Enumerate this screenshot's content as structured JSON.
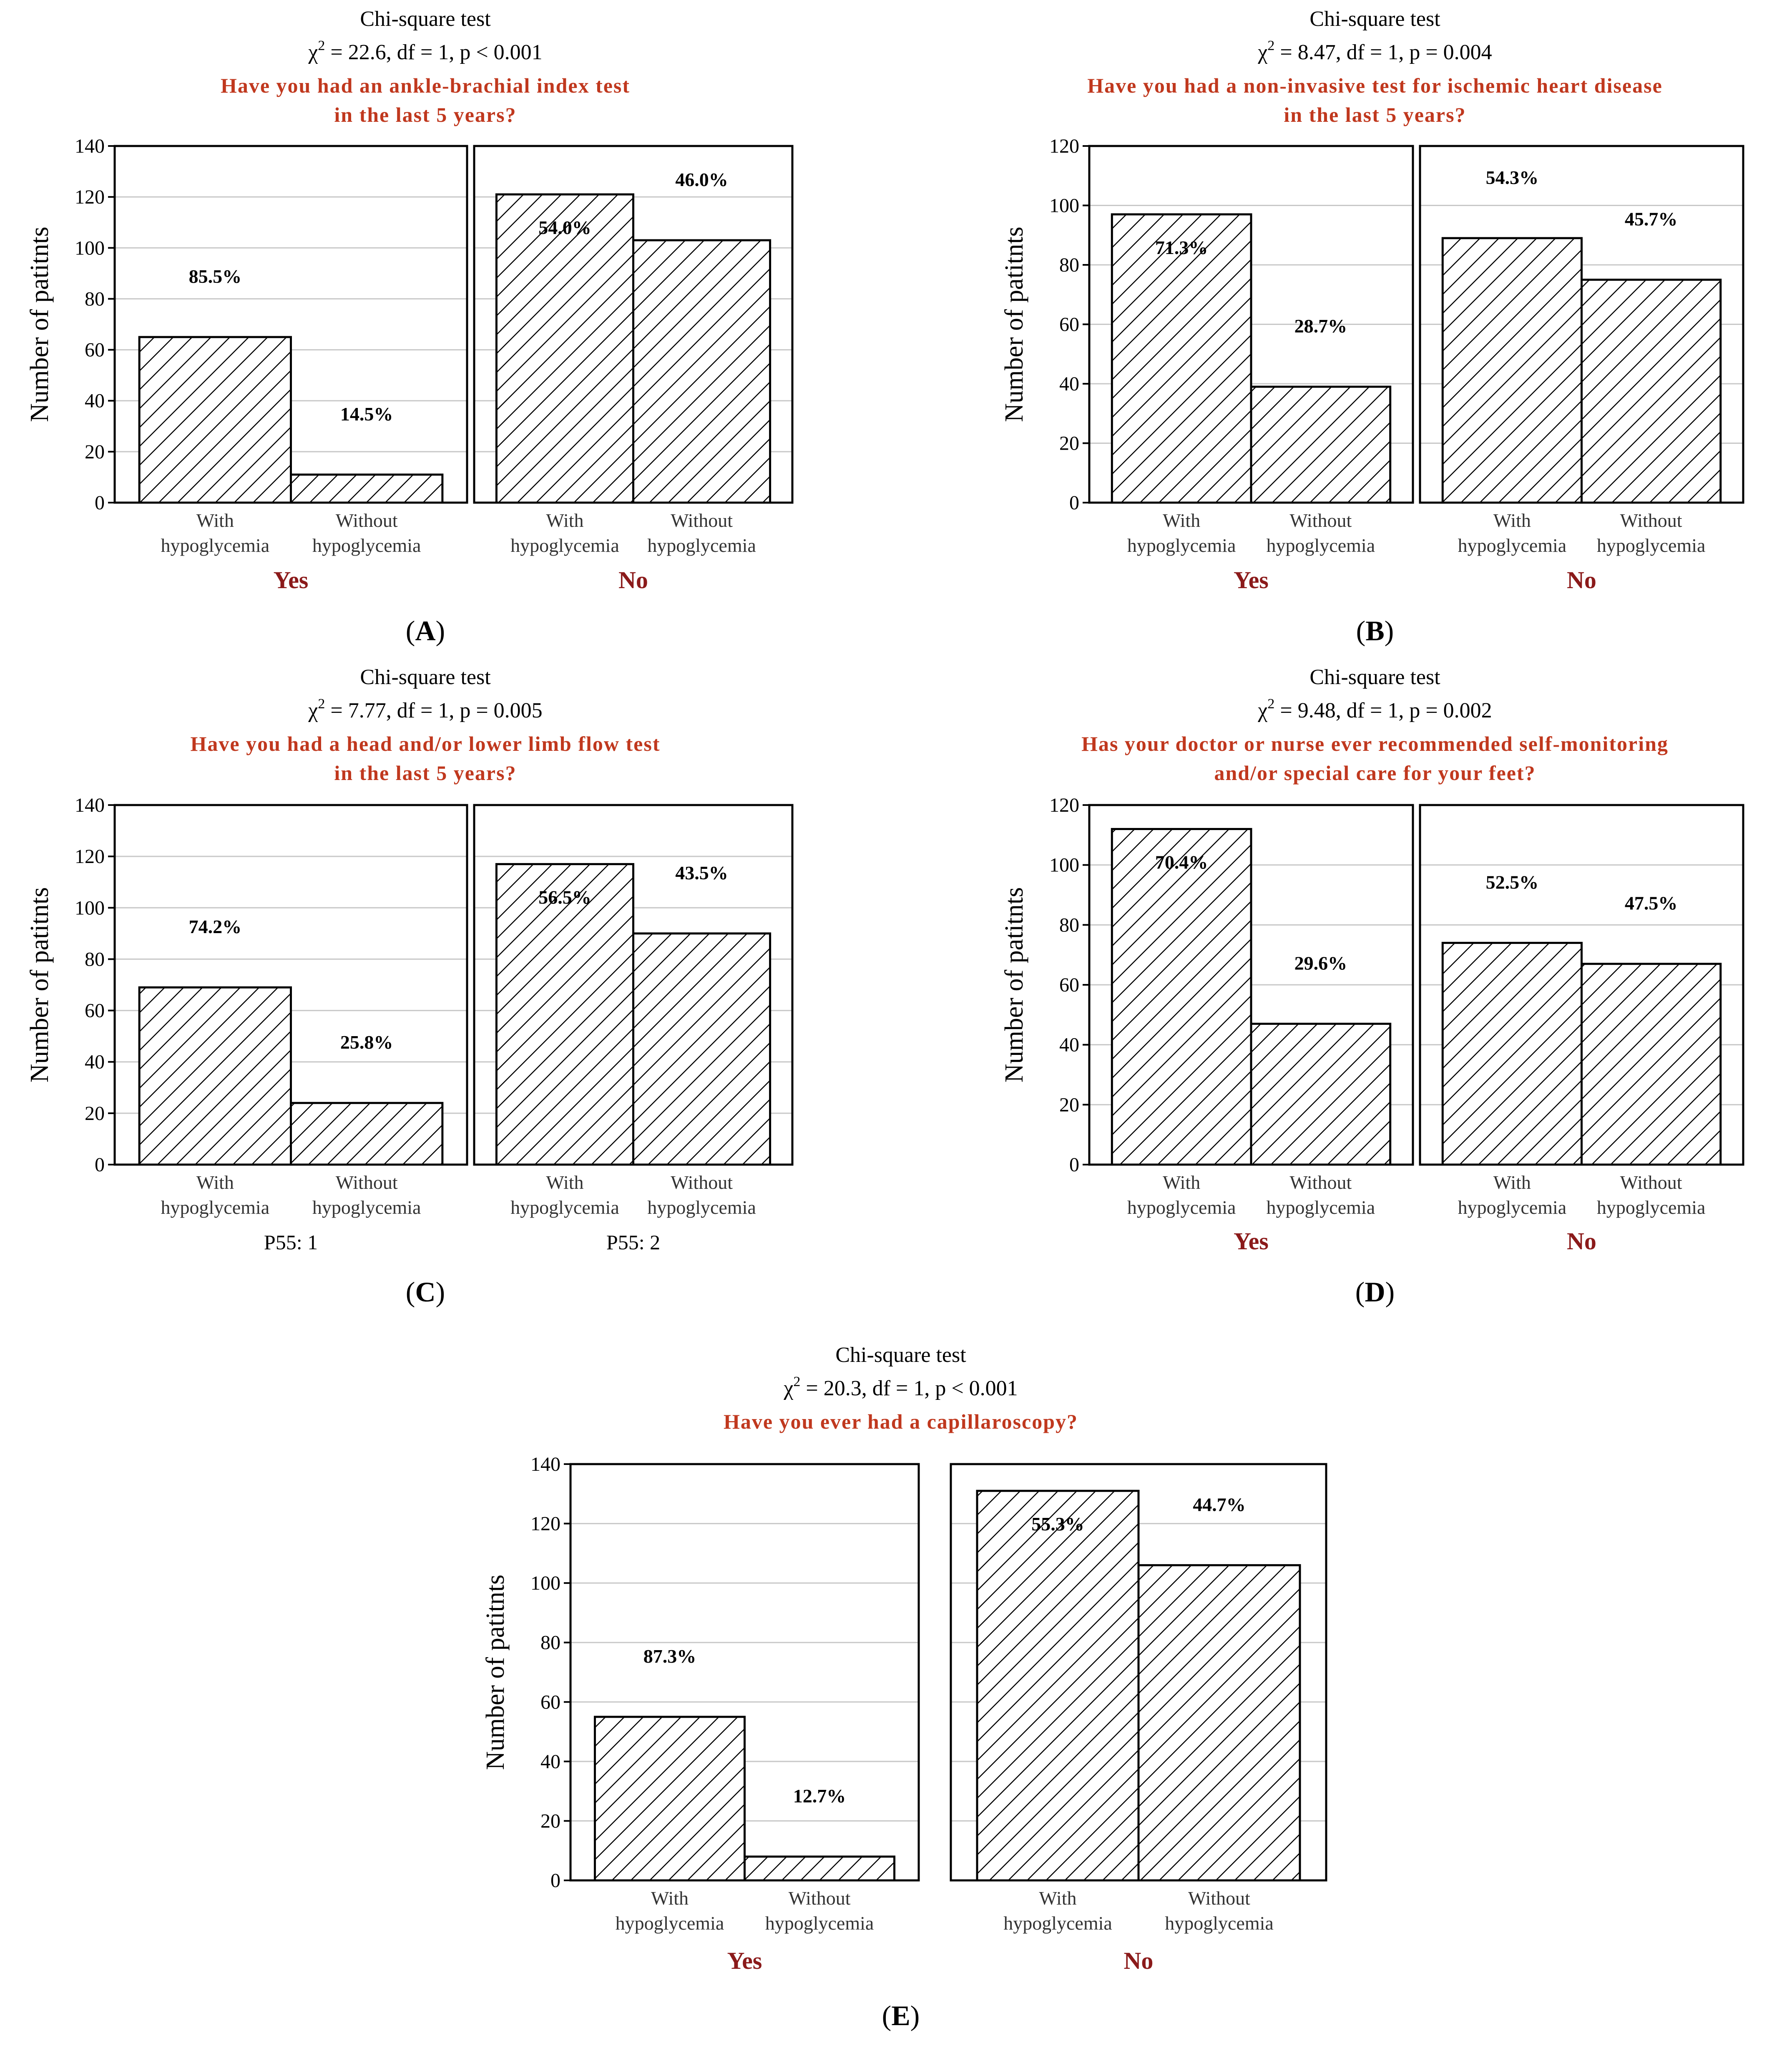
{
  "hatch": {
    "stroke": "#000000",
    "fill": "#ffffff"
  },
  "colors": {
    "question": "#C0381E",
    "group": "#8B1A1A",
    "grid": "#c8c8c8",
    "text": "#000000"
  },
  "chart_data": [
    {
      "type": "bar",
      "panel_label": "A",
      "test_name": "Chi-square test",
      "statistic": {
        "chi2": "22.6",
        "df": "1",
        "p": "p < 0.001"
      },
      "title_lines": [
        "Have you had an ankle-brachial index test",
        "in the last 5 years?"
      ],
      "ylabel": "Number of patitnts",
      "ylim": [
        0,
        140
      ],
      "yticks": [
        0,
        20,
        40,
        60,
        80,
        100,
        120,
        140
      ],
      "categories": [
        "With hypoglycemia",
        "Without hypoglycemia"
      ],
      "groups": [
        {
          "label": "Yes",
          "values": [
            65,
            11
          ],
          "percent_labels": [
            "85.5%",
            "14.5%"
          ]
        },
        {
          "label": "No",
          "values": [
            121,
            103
          ],
          "percent_labels": [
            "54.0%",
            "46.0%"
          ]
        }
      ]
    },
    {
      "type": "bar",
      "panel_label": "B",
      "test_name": "Chi-square test",
      "statistic": {
        "chi2": "8.47",
        "df": "1",
        "p": "p = 0.004"
      },
      "title_lines": [
        "Have you had a non-invasive test for ischemic heart disease",
        "in the last 5 years?"
      ],
      "ylabel": "Number of patitnts",
      "ylim": [
        0,
        120
      ],
      "yticks": [
        0,
        20,
        40,
        60,
        80,
        100,
        120
      ],
      "categories": [
        "With hypoglycemia",
        "Without hypoglycemia"
      ],
      "groups": [
        {
          "label": "Yes",
          "values": [
            97,
            39
          ],
          "percent_labels": [
            "71.3%",
            "28.7%"
          ]
        },
        {
          "label": "No",
          "values": [
            89,
            75
          ],
          "percent_labels": [
            "54.3%",
            "45.7%"
          ]
        }
      ]
    },
    {
      "type": "bar",
      "panel_label": "C",
      "test_name": "Chi-square test",
      "statistic": {
        "chi2": "7.77",
        "df": "1",
        "p": "p = 0.005"
      },
      "title_lines": [
        "Have you had a head and/or lower limb flow test",
        "in the last 5 years?"
      ],
      "ylabel": "Number of patitnts",
      "ylim": [
        0,
        140
      ],
      "yticks": [
        0,
        20,
        40,
        60,
        80,
        100,
        120,
        140
      ],
      "categories": [
        "With hypoglycemia",
        "Without hypoglycemia"
      ],
      "groups": [
        {
          "label": "P55: 1",
          "values": [
            69,
            24
          ],
          "percent_labels": [
            "74.2%",
            "25.8%"
          ]
        },
        {
          "label": "P55: 2",
          "values": [
            117,
            90
          ],
          "percent_labels": [
            "56.5%",
            "43.5%"
          ]
        }
      ]
    },
    {
      "type": "bar",
      "panel_label": "D",
      "test_name": "Chi-square test",
      "statistic": {
        "chi2": "9.48",
        "df": "1",
        "p": "p = 0.002"
      },
      "title_lines": [
        "Has your doctor or nurse ever recommended self-monitoring",
        "and/or special care for your feet?"
      ],
      "ylabel": "Number of patitnts",
      "ylim": [
        0,
        120
      ],
      "yticks": [
        0,
        20,
        40,
        60,
        80,
        100,
        120
      ],
      "categories": [
        "With hypoglycemia",
        "Without hypoglycemia"
      ],
      "groups": [
        {
          "label": "Yes",
          "values": [
            112,
            47
          ],
          "percent_labels": [
            "70.4%",
            "29.6%"
          ]
        },
        {
          "label": "No",
          "values": [
            74,
            67
          ],
          "percent_labels": [
            "52.5%",
            "47.5%"
          ]
        }
      ]
    },
    {
      "type": "bar",
      "panel_label": "E",
      "test_name": "Chi-square test",
      "statistic": {
        "chi2": "20.3",
        "df": "1",
        "p": "p < 0.001"
      },
      "title_lines": [
        "Have you ever had a capillaroscopy?"
      ],
      "ylabel": "Number of patitnts",
      "ylim": [
        0,
        140
      ],
      "yticks": [
        0,
        20,
        40,
        60,
        80,
        100,
        120,
        140
      ],
      "categories": [
        "With hypoglycemia",
        "Without hypoglycemia"
      ],
      "groups": [
        {
          "label": "Yes",
          "values": [
            55,
            8
          ],
          "percent_labels": [
            "87.3%",
            "12.7%"
          ]
        },
        {
          "label": "No",
          "values": [
            131,
            106
          ],
          "percent_labels": [
            "55.3%",
            "44.7%"
          ]
        }
      ]
    }
  ]
}
